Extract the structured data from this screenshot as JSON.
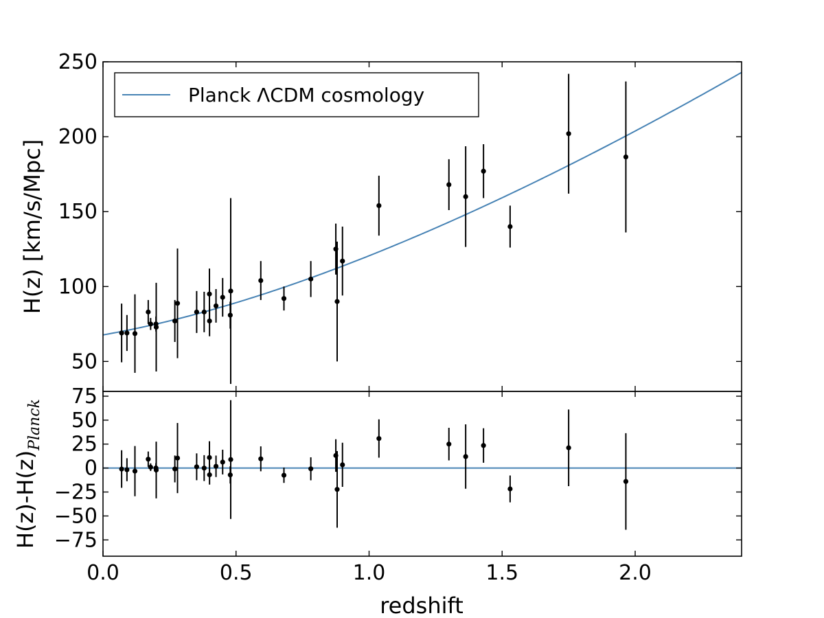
{
  "colors": {
    "model": "#4682b4",
    "points": "#000000",
    "axes": "#000000"
  },
  "chart_data": {
    "type": "scatter",
    "xlabel": "redshift",
    "xlim": [
      0.0,
      2.4
    ],
    "x_ticks": [
      0.0,
      0.5,
      1.0,
      1.5,
      2.0
    ],
    "x_tick_labels": [
      "0.0",
      "0.5",
      "1.0",
      "1.5",
      "2.0"
    ],
    "points": [
      {
        "z": 0.07,
        "H": 69,
        "err": 19.6
      },
      {
        "z": 0.09,
        "H": 69,
        "err": 12
      },
      {
        "z": 0.12,
        "H": 68.6,
        "err": 26.2
      },
      {
        "z": 0.17,
        "H": 83,
        "err": 8
      },
      {
        "z": 0.179,
        "H": 75,
        "err": 4
      },
      {
        "z": 0.199,
        "H": 75,
        "err": 5
      },
      {
        "z": 0.2,
        "H": 72.9,
        "err": 29.6
      },
      {
        "z": 0.27,
        "H": 77,
        "err": 14
      },
      {
        "z": 0.28,
        "H": 88.8,
        "err": 36.6
      },
      {
        "z": 0.352,
        "H": 83,
        "err": 14
      },
      {
        "z": 0.3802,
        "H": 83,
        "err": 13.5
      },
      {
        "z": 0.4,
        "H": 95,
        "err": 17
      },
      {
        "z": 0.4004,
        "H": 77,
        "err": 10.2
      },
      {
        "z": 0.4247,
        "H": 87.1,
        "err": 11.2
      },
      {
        "z": 0.4497,
        "H": 92.8,
        "err": 12.9
      },
      {
        "z": 0.4783,
        "H": 80.9,
        "err": 9
      },
      {
        "z": 0.48,
        "H": 97,
        "err": 62
      },
      {
        "z": 0.593,
        "H": 104,
        "err": 13
      },
      {
        "z": 0.68,
        "H": 92,
        "err": 8
      },
      {
        "z": 0.781,
        "H": 105,
        "err": 12
      },
      {
        "z": 0.875,
        "H": 125,
        "err": 17
      },
      {
        "z": 0.88,
        "H": 90,
        "err": 40
      },
      {
        "z": 0.9,
        "H": 117,
        "err": 23
      },
      {
        "z": 1.037,
        "H": 154,
        "err": 20
      },
      {
        "z": 1.3,
        "H": 168,
        "err": 17
      },
      {
        "z": 1.363,
        "H": 160,
        "err": 33.6
      },
      {
        "z": 1.43,
        "H": 177,
        "err": 18
      },
      {
        "z": 1.53,
        "H": 140,
        "err": 14
      },
      {
        "z": 1.75,
        "H": 202,
        "err": 40
      },
      {
        "z": 1.965,
        "H": 186.5,
        "err": 50.4
      }
    ],
    "top_panel": {
      "ylabel": "H(z) [km/s/Mpc]",
      "ylim": [
        30,
        250
      ],
      "y_ticks": [
        50,
        100,
        150,
        200,
        250
      ],
      "y_tick_labels": [
        "50",
        "100",
        "150",
        "200",
        "250"
      ],
      "model": {
        "name": "Planck ΛCDM cosmology",
        "H0": 67.7,
        "Om": 0.31
      },
      "legend_position": "top-left"
    },
    "bottom_panel": {
      "ylabel_main": "H(z)-H(z)",
      "ylabel_sub": "Planck",
      "ylim": [
        -92,
        80
      ],
      "y_ticks": [
        -75,
        -50,
        -25,
        0,
        25,
        50,
        75
      ],
      "y_tick_labels": [
        "−75",
        "−50",
        "−25",
        "0",
        "25",
        "50",
        "75"
      ]
    }
  }
}
